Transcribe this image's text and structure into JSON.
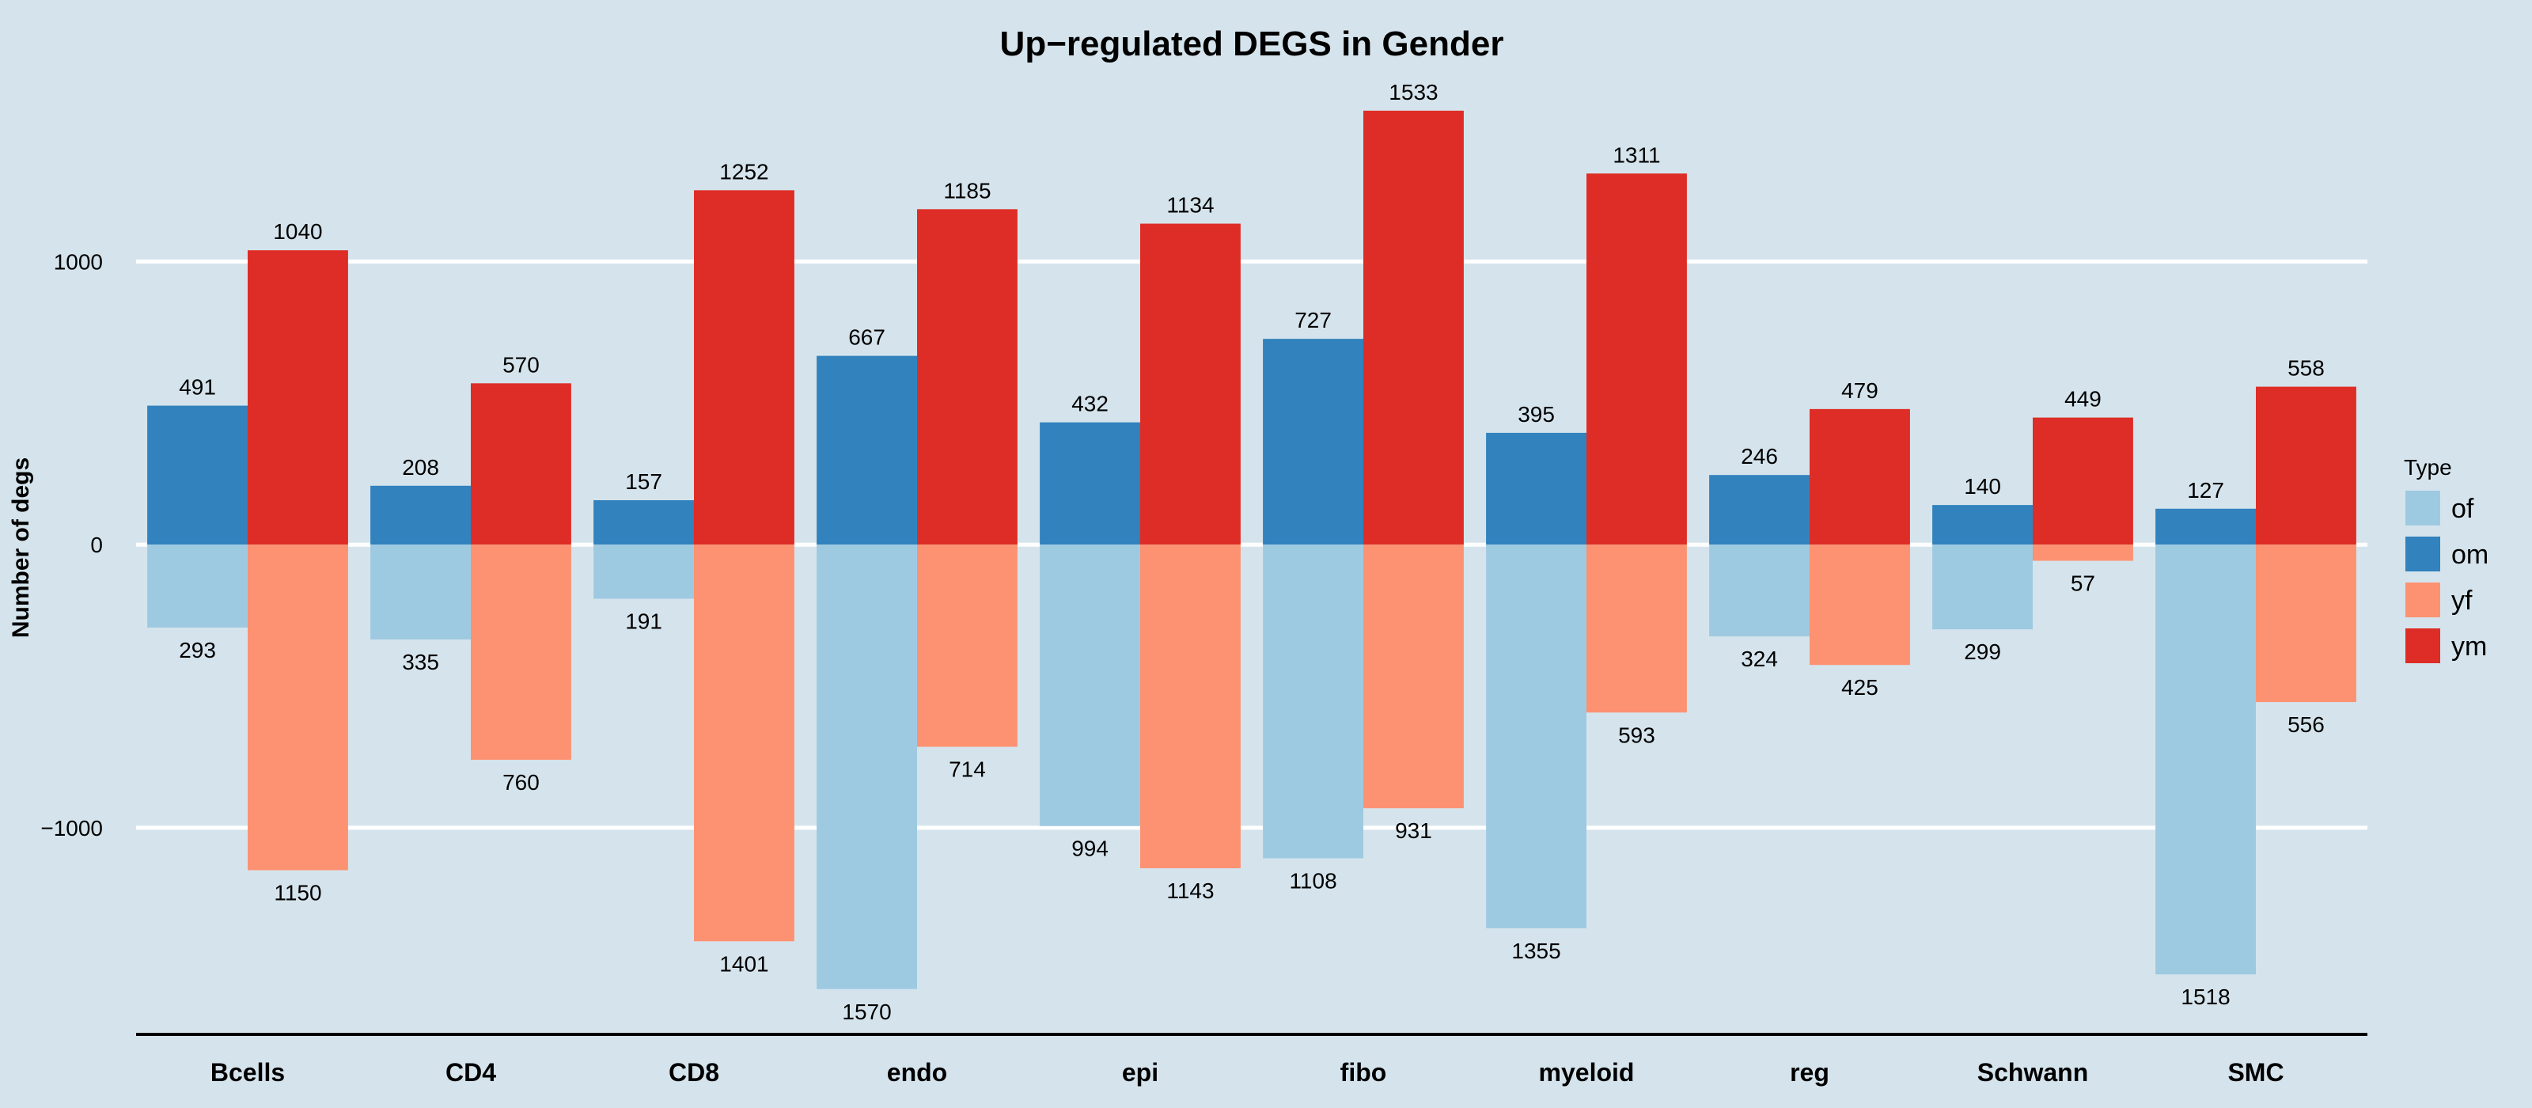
{
  "colors": {
    "background": "#d5e4ec",
    "gridline": "#ffffff",
    "axis_line": "#000000",
    "of": "#9ecae1",
    "om": "#3182bd",
    "yf": "#fc9272",
    "ym": "#de2d26"
  },
  "chart_data": {
    "type": "bar",
    "title": "Up−regulated DEGS in Gender",
    "xlabel": "",
    "ylabel": "Number of degs",
    "categories": [
      "Bcells",
      "CD4",
      "CD8",
      "endo",
      "epi",
      "fibo",
      "myeloid",
      "reg",
      "Schwann",
      "SMC"
    ],
    "ylim": [
      -1730,
      1650
    ],
    "yticks": [
      1000,
      0,
      -1000
    ],
    "ytick_labels": [
      "1000",
      "0",
      "−1000"
    ],
    "grid": true,
    "legend": {
      "title": "Type",
      "position": "right",
      "entries": [
        "of",
        "om",
        "yf",
        "ym"
      ]
    },
    "series": [
      {
        "name": "of",
        "values": [
          -293,
          -335,
          -191,
          -1570,
          -994,
          -1108,
          -1355,
          -324,
          -299,
          -1518
        ]
      },
      {
        "name": "om",
        "values": [
          491,
          208,
          157,
          667,
          432,
          727,
          395,
          246,
          140,
          127
        ]
      },
      {
        "name": "yf",
        "values": [
          -1150,
          -760,
          -1401,
          -714,
          -1143,
          -931,
          -593,
          -425,
          -57,
          -556
        ]
      },
      {
        "name": "ym",
        "values": [
          1040,
          570,
          1252,
          1185,
          1134,
          1533,
          1311,
          479,
          449,
          558
        ]
      }
    ],
    "data_labels": {
      "of": [
        "293",
        "335",
        "191",
        "1570",
        "994",
        "1108",
        "1355",
        "324",
        "299",
        "1518"
      ],
      "om": [
        "491",
        "208",
        "157",
        "667",
        "432",
        "727",
        "395",
        "246",
        "140",
        "127"
      ],
      "yf": [
        "1150",
        "760",
        "1401",
        "714",
        "1143",
        "931",
        "593",
        "425",
        "57",
        "556"
      ],
      "ym": [
        "1040",
        "570",
        "1252",
        "1185",
        "1134",
        "1533",
        "1311",
        "479",
        "449",
        "558"
      ]
    }
  }
}
